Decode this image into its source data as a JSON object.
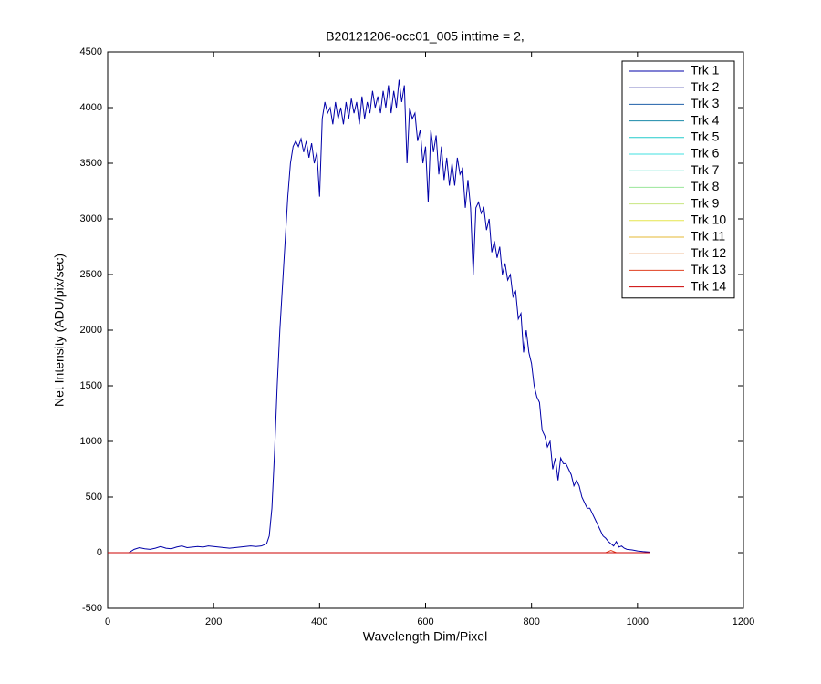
{
  "chart_data": {
    "type": "line",
    "title": "B20121206-occ01_005 inttime = 2,",
    "x_label": "Wavelength Dim/Pixel",
    "y_label": "Net Intensity (ADU/pix/sec)",
    "xlim": [
      0,
      1200
    ],
    "ylim": [
      -500,
      4500
    ],
    "xticks": [
      0,
      200,
      400,
      600,
      800,
      1000,
      1200
    ],
    "yticks": [
      -500,
      0,
      500,
      1000,
      1500,
      2000,
      2500,
      3000,
      3500,
      4000,
      4500
    ],
    "legend": "upper right",
    "series": [
      {
        "name": "Trk 1",
        "color": "#0000a8",
        "x": [
          40,
          50,
          60,
          70,
          80,
          90,
          100,
          110,
          120,
          130,
          140,
          150,
          160,
          170,
          180,
          190,
          200,
          210,
          220,
          230,
          240,
          250,
          260,
          270,
          280,
          290,
          300,
          305,
          310,
          315,
          320,
          325,
          330,
          335,
          340,
          345,
          350,
          355,
          360,
          365,
          370,
          375,
          380,
          385,
          390,
          395,
          400,
          405,
          410,
          415,
          420,
          425,
          430,
          435,
          440,
          445,
          450,
          455,
          460,
          465,
          470,
          475,
          480,
          485,
          490,
          495,
          500,
          505,
          510,
          515,
          520,
          525,
          530,
          535,
          540,
          545,
          550,
          555,
          560,
          565,
          570,
          575,
          580,
          585,
          590,
          595,
          600,
          605,
          610,
          615,
          620,
          625,
          630,
          635,
          640,
          645,
          650,
          655,
          660,
          665,
          670,
          675,
          680,
          685,
          690,
          695,
          700,
          705,
          710,
          715,
          720,
          725,
          730,
          735,
          740,
          745,
          750,
          755,
          760,
          765,
          770,
          775,
          780,
          785,
          790,
          795,
          800,
          805,
          810,
          815,
          820,
          825,
          830,
          835,
          840,
          845,
          850,
          855,
          860,
          865,
          870,
          875,
          880,
          885,
          890,
          895,
          900,
          905,
          910,
          915,
          920,
          925,
          930,
          935,
          940,
          945,
          950,
          955,
          960,
          965,
          970,
          975,
          980,
          990,
          1000,
          1010,
          1023
        ],
        "values": [
          0,
          30,
          45,
          35,
          30,
          40,
          55,
          40,
          35,
          50,
          60,
          45,
          50,
          55,
          50,
          60,
          55,
          50,
          45,
          40,
          45,
          50,
          55,
          60,
          55,
          60,
          80,
          150,
          400,
          900,
          1500,
          2000,
          2400,
          2800,
          3200,
          3500,
          3650,
          3700,
          3650,
          3720,
          3600,
          3700,
          3550,
          3680,
          3500,
          3600,
          3200,
          3900,
          4050,
          3950,
          4000,
          3850,
          4050,
          3900,
          4000,
          3850,
          4050,
          3900,
          4080,
          3950,
          4050,
          3850,
          4100,
          3900,
          4050,
          3950,
          4150,
          4000,
          4100,
          3950,
          4150,
          4000,
          4200,
          3950,
          4150,
          4000,
          4250,
          4050,
          4200,
          3500,
          4000,
          3900,
          3950,
          3700,
          3800,
          3500,
          3650,
          3150,
          3800,
          3600,
          3750,
          3400,
          3650,
          3350,
          3550,
          3300,
          3500,
          3300,
          3550,
          3400,
          3450,
          3100,
          3350,
          3100,
          2500,
          3100,
          3150,
          3050,
          3100,
          2900,
          3000,
          2700,
          2800,
          2650,
          2750,
          2500,
          2600,
          2450,
          2500,
          2300,
          2350,
          2100,
          2150,
          1800,
          2000,
          1800,
          1700,
          1500,
          1400,
          1350,
          1100,
          1050,
          950,
          1000,
          750,
          850,
          650,
          850,
          800,
          800,
          750,
          700,
          600,
          650,
          600,
          500,
          450,
          400,
          400,
          350,
          300,
          250,
          200,
          150,
          130,
          100,
          80,
          60,
          100,
          50,
          60,
          40,
          30,
          25,
          15,
          10,
          5
        ]
      },
      {
        "name": "Trk 2",
        "color": "#00008b",
        "x": [
          0,
          1023
        ],
        "values": [
          0,
          0
        ]
      },
      {
        "name": "Trk 3",
        "color": "#1f5fa8",
        "x": [
          0,
          1023
        ],
        "values": [
          0,
          0
        ]
      },
      {
        "name": "Trk 4",
        "color": "#1a8aa8",
        "x": [
          0,
          1023
        ],
        "values": [
          0,
          0
        ]
      },
      {
        "name": "Trk 5",
        "color": "#22cccc",
        "x": [
          0,
          1023
        ],
        "values": [
          0,
          0
        ]
      },
      {
        "name": "Trk 6",
        "color": "#40e0e0",
        "x": [
          0,
          1023
        ],
        "values": [
          0,
          0
        ]
      },
      {
        "name": "Trk 7",
        "color": "#66e6d0",
        "x": [
          0,
          1023
        ],
        "values": [
          0,
          0
        ]
      },
      {
        "name": "Trk 8",
        "color": "#99e699",
        "x": [
          0,
          1023
        ],
        "values": [
          0,
          0
        ]
      },
      {
        "name": "Trk 9",
        "color": "#c8e680",
        "x": [
          0,
          1023
        ],
        "values": [
          0,
          0
        ]
      },
      {
        "name": "Trk 10",
        "color": "#e6e64d",
        "x": [
          0,
          1023
        ],
        "values": [
          0,
          0
        ]
      },
      {
        "name": "Trk 11",
        "color": "#e6b833",
        "x": [
          0,
          1023
        ],
        "values": [
          0,
          0
        ]
      },
      {
        "name": "Trk 12",
        "color": "#e68033",
        "x": [
          0,
          1023
        ],
        "values": [
          0,
          0
        ]
      },
      {
        "name": "Trk 13",
        "color": "#e04020",
        "x": [
          0,
          940,
          950,
          960,
          1023
        ],
        "values": [
          0,
          0,
          20,
          0,
          0
        ]
      },
      {
        "name": "Trk 14",
        "color": "#cc0000",
        "x": [
          0,
          1023
        ],
        "values": [
          0,
          0
        ]
      }
    ]
  }
}
